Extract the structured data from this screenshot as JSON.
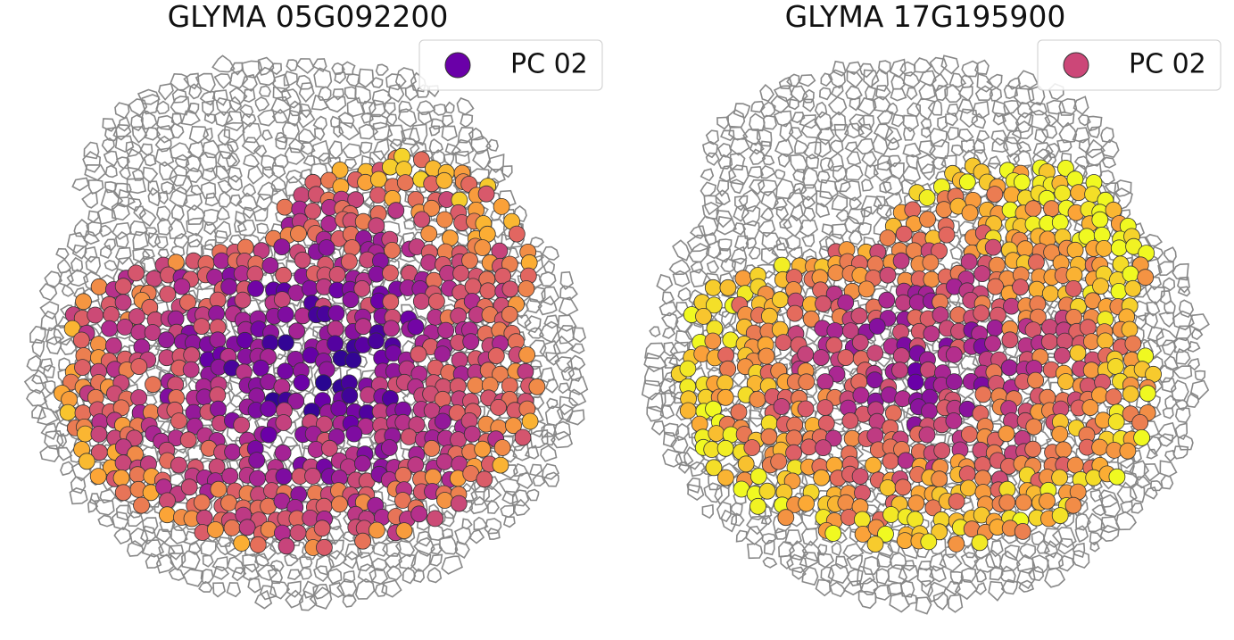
{
  "panels": [
    {
      "title": "GLYMA 05G092200",
      "legend": {
        "label": "PC 02",
        "color": "#6a00a8"
      }
    },
    {
      "title": "GLYMA 17G195900",
      "legend": {
        "label": "PC 02",
        "color": "#cc4778"
      }
    }
  ]
}
